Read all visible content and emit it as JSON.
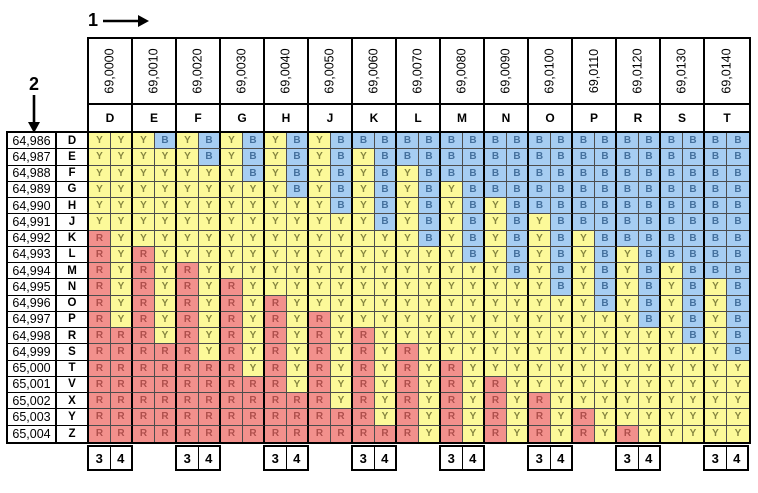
{
  "diagram": {
    "axis_markers": {
      "columns_marker": "1",
      "rows_marker": "2"
    },
    "columns": [
      {
        "coordinate": "69,0000",
        "letter": "D"
      },
      {
        "coordinate": "69,0010",
        "letter": "E"
      },
      {
        "coordinate": "69,0020",
        "letter": "F"
      },
      {
        "coordinate": "69,0030",
        "letter": "G"
      },
      {
        "coordinate": "69,0040",
        "letter": "H"
      },
      {
        "coordinate": "69,0050",
        "letter": "J"
      },
      {
        "coordinate": "69,0060",
        "letter": "K"
      },
      {
        "coordinate": "69,0070",
        "letter": "L"
      },
      {
        "coordinate": "69,0080",
        "letter": "M"
      },
      {
        "coordinate": "69,0090",
        "letter": "N"
      },
      {
        "coordinate": "69,0100",
        "letter": "O"
      },
      {
        "coordinate": "69,0110",
        "letter": "P"
      },
      {
        "coordinate": "69,0120",
        "letter": "R"
      },
      {
        "coordinate": "69,0130",
        "letter": "S"
      },
      {
        "coordinate": "69,0140",
        "letter": "T"
      }
    ],
    "rows": [
      {
        "coordinate": "64,986",
        "letter": "D"
      },
      {
        "coordinate": "64,987",
        "letter": "E"
      },
      {
        "coordinate": "64,988",
        "letter": "F"
      },
      {
        "coordinate": "64,989",
        "letter": "G"
      },
      {
        "coordinate": "64,990",
        "letter": "H"
      },
      {
        "coordinate": "64,991",
        "letter": "J"
      },
      {
        "coordinate": "64,992",
        "letter": "K"
      },
      {
        "coordinate": "64,993",
        "letter": "L"
      },
      {
        "coordinate": "64,994",
        "letter": "M"
      },
      {
        "coordinate": "64,995",
        "letter": "N"
      },
      {
        "coordinate": "64,996",
        "letter": "O"
      },
      {
        "coordinate": "64,997",
        "letter": "P"
      },
      {
        "coordinate": "64,998",
        "letter": "R"
      },
      {
        "coordinate": "64,999",
        "letter": "S"
      },
      {
        "coordinate": "65,000",
        "letter": "T"
      },
      {
        "coordinate": "65,001",
        "letter": "V"
      },
      {
        "coordinate": "65,002",
        "letter": "X"
      },
      {
        "coordinate": "65,003",
        "letter": "Y"
      },
      {
        "coordinate": "65,004",
        "letter": "Z"
      }
    ],
    "cells": [
      [
        "YY",
        "YB",
        "YB",
        "YB",
        "YB",
        "YB",
        "BB",
        "BB",
        "BB",
        "BB",
        "BB",
        "BB",
        "BB",
        "BB",
        "BB"
      ],
      [
        "YY",
        "YY",
        "YB",
        "YB",
        "YB",
        "YB",
        "YB",
        "BB",
        "BB",
        "BB",
        "BB",
        "BB",
        "BB",
        "BB",
        "BB"
      ],
      [
        "YY",
        "YY",
        "YY",
        "YB",
        "YB",
        "YB",
        "YB",
        "YB",
        "BB",
        "BB",
        "BB",
        "BB",
        "BB",
        "BB",
        "BB"
      ],
      [
        "YY",
        "YY",
        "YY",
        "YY",
        "YB",
        "YB",
        "YB",
        "YB",
        "YB",
        "BB",
        "BB",
        "BB",
        "BB",
        "BB",
        "BB"
      ],
      [
        "YY",
        "YY",
        "YY",
        "YY",
        "YY",
        "YB",
        "YB",
        "YB",
        "YB",
        "YB",
        "BB",
        "BB",
        "BB",
        "BB",
        "BB"
      ],
      [
        "YY",
        "YY",
        "YY",
        "YY",
        "YY",
        "YY",
        "YB",
        "YB",
        "YB",
        "YB",
        "YB",
        "BB",
        "BB",
        "BB",
        "BB"
      ],
      [
        "RY",
        "YY",
        "YY",
        "YY",
        "YY",
        "YY",
        "YY",
        "YB",
        "YB",
        "YB",
        "YB",
        "YB",
        "BB",
        "BB",
        "BB"
      ],
      [
        "RY",
        "RY",
        "YY",
        "YY",
        "YY",
        "YY",
        "YY",
        "YY",
        "YB",
        "YB",
        "YB",
        "YB",
        "YB",
        "BB",
        "BB"
      ],
      [
        "RY",
        "RY",
        "RY",
        "YY",
        "YY",
        "YY",
        "YY",
        "YY",
        "YY",
        "YB",
        "YB",
        "YB",
        "YB",
        "YB",
        "BB"
      ],
      [
        "RY",
        "RY",
        "RY",
        "RY",
        "YY",
        "YY",
        "YY",
        "YY",
        "YY",
        "YY",
        "YB",
        "YB",
        "YB",
        "YB",
        "YB"
      ],
      [
        "RY",
        "RY",
        "RY",
        "RY",
        "RY",
        "YY",
        "YY",
        "YY",
        "YY",
        "YY",
        "YY",
        "YB",
        "YB",
        "YB",
        "YB"
      ],
      [
        "RY",
        "RY",
        "RY",
        "RY",
        "RY",
        "RY",
        "YY",
        "YY",
        "YY",
        "YY",
        "YY",
        "YY",
        "YB",
        "YB",
        "YB"
      ],
      [
        "RR",
        "RY",
        "RY",
        "RY",
        "RY",
        "RY",
        "RY",
        "YY",
        "YY",
        "YY",
        "YY",
        "YY",
        "YY",
        "YB",
        "YB"
      ],
      [
        "RR",
        "RR",
        "RY",
        "RY",
        "RY",
        "RY",
        "RY",
        "RY",
        "YY",
        "YY",
        "YY",
        "YY",
        "YY",
        "YY",
        "YB"
      ],
      [
        "RR",
        "RR",
        "RR",
        "RY",
        "RY",
        "RY",
        "RY",
        "RY",
        "RY",
        "YY",
        "YY",
        "YY",
        "YY",
        "YY",
        "YY"
      ],
      [
        "RR",
        "RR",
        "RR",
        "RR",
        "RY",
        "RY",
        "RY",
        "RY",
        "RY",
        "RY",
        "YY",
        "YY",
        "YY",
        "YY",
        "YY"
      ],
      [
        "RR",
        "RR",
        "RR",
        "RR",
        "RR",
        "RY",
        "RY",
        "RY",
        "RY",
        "RY",
        "RY",
        "YY",
        "YY",
        "YY",
        "YY"
      ],
      [
        "RR",
        "RR",
        "RR",
        "RR",
        "RR",
        "RR",
        "RY",
        "RY",
        "RY",
        "RY",
        "RY",
        "RY",
        "YY",
        "YY",
        "YY"
      ],
      [
        "RR",
        "RR",
        "RR",
        "RR",
        "RR",
        "RR",
        "RR",
        "RY",
        "RY",
        "RY",
        "RY",
        "RY",
        "RY",
        "YY",
        "YY"
      ]
    ],
    "footer_boxes": {
      "labels": [
        "3",
        "4"
      ],
      "under_columns": [
        "D",
        "F",
        "H",
        "K",
        "M",
        "O",
        "R",
        "T"
      ]
    },
    "legend_colors": {
      "Y_background": "#FCF999",
      "B_background": "#A6CDF2",
      "R_background": "#F2908C",
      "Y_text": "#85853F",
      "B_text": "#44709D",
      "R_text": "#AE4F4C"
    }
  }
}
